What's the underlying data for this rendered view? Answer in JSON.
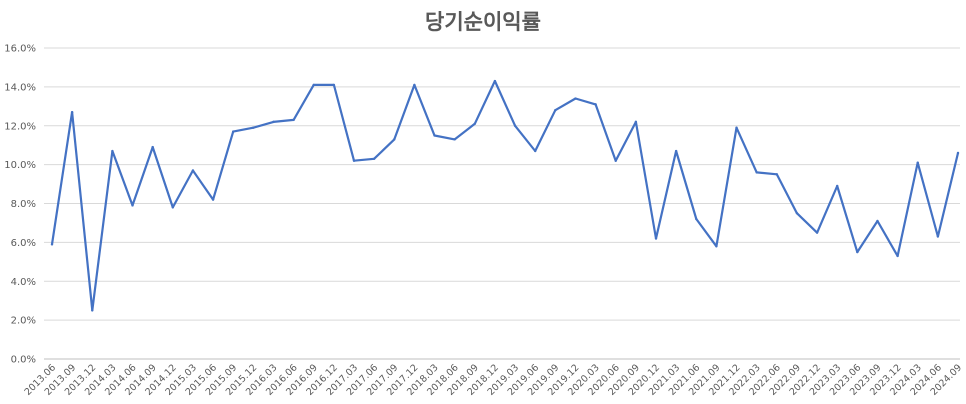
{
  "chart_data": {
    "type": "line",
    "title": "당기순이익률",
    "xlabel": "",
    "ylabel": "",
    "ylim": [
      0,
      16
    ],
    "yticks": [
      "0.0%",
      "2.0%",
      "4.0%",
      "6.0%",
      "8.0%",
      "10.0%",
      "12.0%",
      "14.0%",
      "16.0%"
    ],
    "grid": true,
    "legend": "none",
    "line_color": "#4472C4",
    "categories": [
      "2013.06",
      "2013.09",
      "2013.12",
      "2014.03",
      "2014.06",
      "2014.09",
      "2014.12",
      "2015.03",
      "2015.06",
      "2015.09",
      "2015.12",
      "2016.03",
      "2016.06",
      "2016.09",
      "2016.12",
      "2017.03",
      "2017.06",
      "2017.09",
      "2017.12",
      "2018.03",
      "2018.06",
      "2018.09",
      "2018.12",
      "2019.03",
      "2019.06",
      "2019.09",
      "2019.12",
      "2020.03",
      "2020.06",
      "2020.09",
      "2020.12",
      "2021.03",
      "2021.06",
      "2021.09",
      "2021.12",
      "2022.03",
      "2022.06",
      "2022.09",
      "2022.12",
      "2023.03",
      "2023.06",
      "2023.09",
      "2023.12",
      "2024.03",
      "2024.06",
      "2024.09"
    ],
    "series": [
      {
        "values": [
          5.9,
          12.7,
          2.5,
          10.7,
          7.9,
          10.9,
          7.8,
          9.7,
          8.2,
          11.7,
          11.9,
          12.2,
          12.3,
          14.1,
          14.1,
          10.2,
          10.3,
          11.3,
          14.1,
          11.5,
          11.3,
          12.1,
          14.3,
          12.0,
          10.7,
          12.8,
          13.4,
          13.1,
          10.2,
          12.2,
          6.2,
          10.7,
          7.2,
          5.8,
          11.9,
          9.6,
          9.5,
          7.5,
          6.5,
          8.9,
          5.5,
          7.1,
          5.3,
          10.1,
          6.3,
          10.6
        ]
      }
    ]
  }
}
